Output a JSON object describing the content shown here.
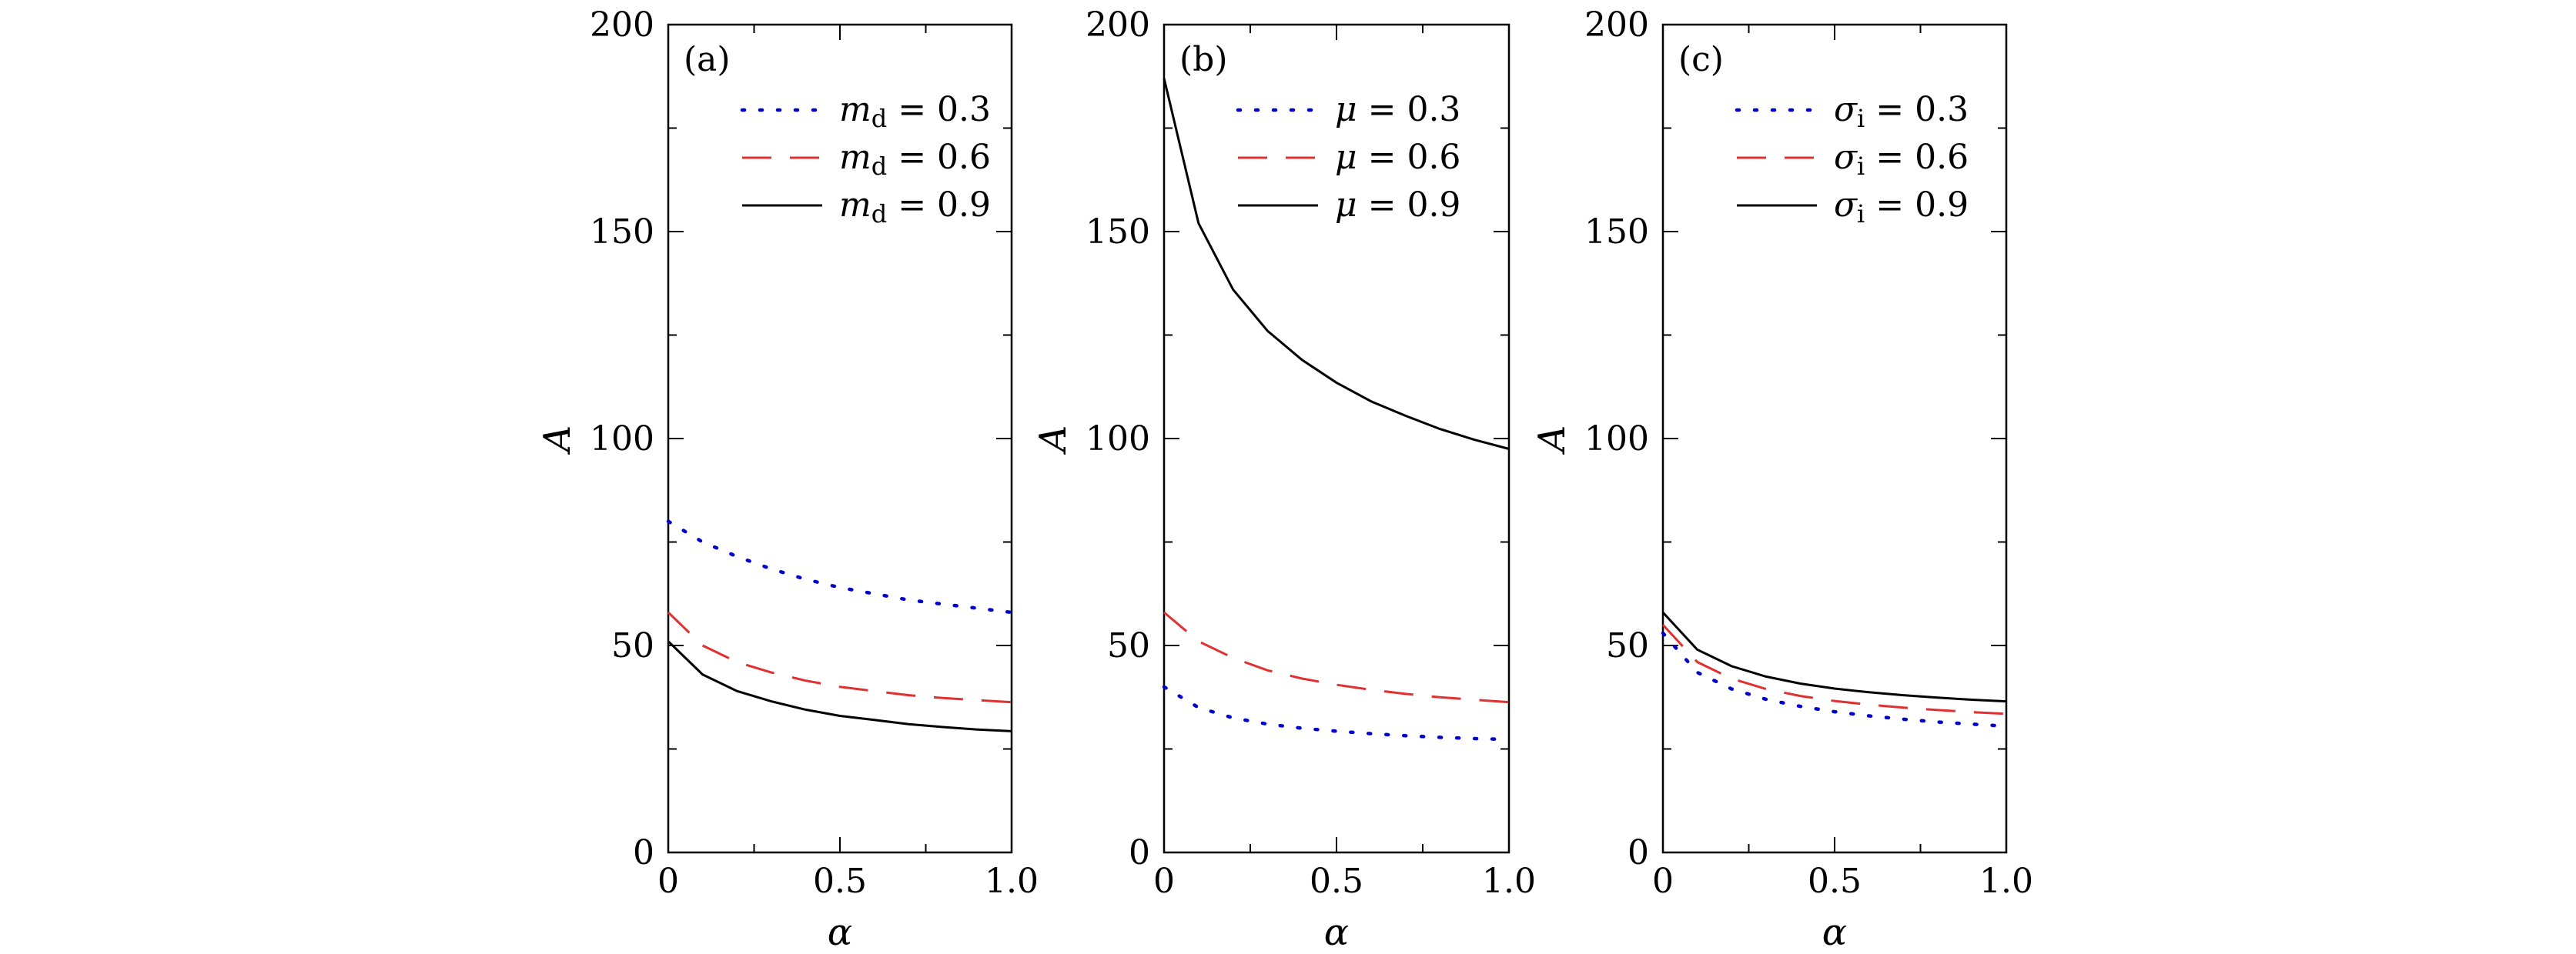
{
  "chart_data": [
    {
      "type": "line",
      "panel_label": "(a)",
      "xlabel": "α",
      "ylabel": "A",
      "xlim": [
        0,
        1.0
      ],
      "ylim": [
        0,
        200
      ],
      "xticks": [
        "0",
        "0.5",
        "1.0"
      ],
      "yticks": [
        "0",
        "50",
        "100",
        "150",
        "200"
      ],
      "x": [
        0,
        0.1,
        0.2,
        0.3,
        0.4,
        0.5,
        0.6,
        0.7,
        0.8,
        0.9,
        1.0
      ],
      "series": [
        {
          "name": "m_d = 0.3",
          "name_parts": {
            "sym": "m",
            "sub": "d",
            "val": "= 0.3"
          },
          "style": "dotted",
          "color": "#0000cc",
          "values": [
            80,
            75,
            71.5,
            68.5,
            66,
            64,
            62.5,
            61,
            60,
            59,
            58
          ]
        },
        {
          "name": "m_d = 0.6",
          "name_parts": {
            "sym": "m",
            "sub": "d",
            "val": "= 0.6"
          },
          "style": "dashed",
          "color": "#e03030",
          "values": [
            58,
            50,
            46,
            43.5,
            41.5,
            40,
            39,
            38,
            37.3,
            36.8,
            36.3
          ]
        },
        {
          "name": "m_d = 0.9",
          "name_parts": {
            "sym": "m",
            "sub": "d",
            "val": "= 0.9"
          },
          "style": "solid",
          "color": "#000000",
          "values": [
            51,
            43,
            39,
            36.5,
            34.5,
            33,
            32,
            31,
            30.3,
            29.7,
            29.3
          ]
        }
      ]
    },
    {
      "type": "line",
      "panel_label": "(b)",
      "xlabel": "α",
      "ylabel": "A",
      "xlim": [
        0,
        1.0
      ],
      "ylim": [
        0,
        200
      ],
      "xticks": [
        "0",
        "0.5",
        "1.0"
      ],
      "yticks": [
        "0",
        "50",
        "100",
        "150",
        "200"
      ],
      "x": [
        0,
        0.1,
        0.2,
        0.3,
        0.4,
        0.5,
        0.6,
        0.7,
        0.8,
        0.9,
        1.0
      ],
      "series": [
        {
          "name": "μ = 0.3",
          "name_parts": {
            "sym": "μ",
            "sub": "",
            "val": "= 0.3"
          },
          "style": "dotted",
          "color": "#0000cc",
          "values": [
            40,
            35,
            32.5,
            31,
            30,
            29.3,
            28.7,
            28.2,
            27.8,
            27.5,
            27.3
          ]
        },
        {
          "name": "μ = 0.6",
          "name_parts": {
            "sym": "μ",
            "sub": "",
            "val": "= 0.6"
          },
          "style": "dashed",
          "color": "#e03030",
          "values": [
            58,
            51,
            47,
            44,
            42,
            40.5,
            39.3,
            38.3,
            37.5,
            36.9,
            36.3
          ]
        },
        {
          "name": "μ = 0.9",
          "name_parts": {
            "sym": "μ",
            "sub": "",
            "val": "= 0.9"
          },
          "style": "solid",
          "color": "#000000",
          "values": [
            187,
            152,
            136,
            126,
            119,
            113.5,
            109,
            105.5,
            102.3,
            99.7,
            97.5
          ]
        }
      ]
    },
    {
      "type": "line",
      "panel_label": "(c)",
      "xlabel": "α",
      "ylabel": "A",
      "xlim": [
        0,
        1.0
      ],
      "ylim": [
        0,
        200
      ],
      "xticks": [
        "0",
        "0.5",
        "1.0"
      ],
      "yticks": [
        "0",
        "50",
        "100",
        "150",
        "200"
      ],
      "x": [
        0,
        0.1,
        0.2,
        0.3,
        0.4,
        0.5,
        0.6,
        0.7,
        0.8,
        0.9,
        1.0
      ],
      "series": [
        {
          "name": "σ_i = 0.3",
          "name_parts": {
            "sym": "σ",
            "sub": "i",
            "val": "= 0.3"
          },
          "style": "dotted",
          "color": "#0000cc",
          "values": [
            53,
            43.5,
            39.5,
            37,
            35.3,
            34,
            33,
            32.2,
            31.5,
            31,
            30.5
          ]
        },
        {
          "name": "σ_i = 0.6",
          "name_parts": {
            "sym": "σ",
            "sub": "i",
            "val": "= 0.6"
          },
          "style": "dashed",
          "color": "#e03030",
          "values": [
            55,
            46,
            42,
            39.5,
            37.8,
            36.6,
            35.7,
            35,
            34.4,
            33.9,
            33.5
          ]
        },
        {
          "name": "σ_i = 0.9",
          "name_parts": {
            "sym": "σ",
            "sub": "i",
            "val": "= 0.9"
          },
          "style": "solid",
          "color": "#000000",
          "values": [
            58,
            49,
            45,
            42.5,
            40.8,
            39.6,
            38.7,
            38,
            37.4,
            36.9,
            36.5
          ]
        }
      ]
    }
  ]
}
